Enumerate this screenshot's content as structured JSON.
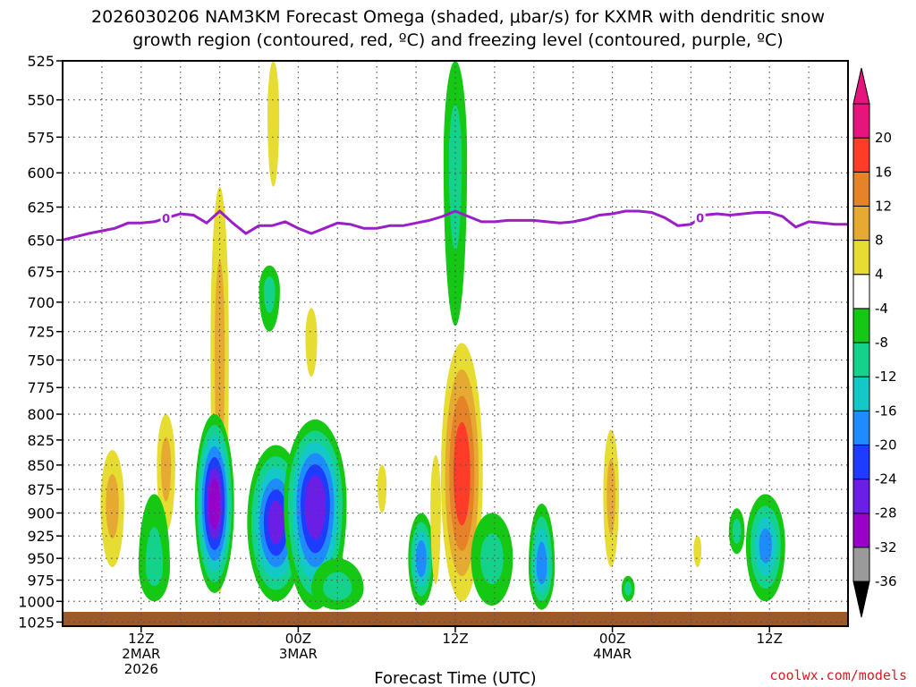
{
  "title": {
    "line1": "2026030206 NAM3KM Forecast Omega (shaded, μbar/s) for KXMR with dendritic snow",
    "line2": "growth region (contoured, red, ºC) and freezing level (contoured, purple, ºC)"
  },
  "credit": "coolwx.com/models",
  "chart_data": {
    "type": "heatmap",
    "title": "2026030206 NAM3KM Forecast Omega (shaded, μbar/s) for KXMR with dendritic snow growth region (contoured, red, ºC) and freezing level (contoured, purple, ºC)",
    "xlabel": "Forecast Time (UTC)",
    "ylabel": "",
    "x_unit": "forecast hour from 2026-03-02 06Z",
    "xlim": [
      0,
      60
    ],
    "ylim": [
      1030,
      525
    ],
    "y_scale": "log-pressure",
    "grid": true,
    "x_ticks": [
      {
        "hour": 6,
        "lines": [
          "12Z",
          "2MAR",
          "2026"
        ]
      },
      {
        "hour": 18,
        "lines": [
          "00Z",
          "3MAR"
        ]
      },
      {
        "hour": 30,
        "lines": [
          "12Z"
        ]
      },
      {
        "hour": 42,
        "lines": [
          "00Z",
          "4MAR"
        ]
      },
      {
        "hour": 54,
        "lines": [
          "12Z"
        ]
      }
    ],
    "y_ticks": [
      525,
      550,
      575,
      600,
      625,
      650,
      675,
      700,
      725,
      750,
      775,
      800,
      825,
      850,
      875,
      900,
      925,
      950,
      975,
      1000,
      1025
    ],
    "colorbar": {
      "levels": [
        -36,
        -32,
        -28,
        -24,
        -20,
        -16,
        -12,
        -8,
        -4,
        4,
        8,
        12,
        16,
        20
      ],
      "colors": [
        "#9a9a9a",
        "#9900c8",
        "#6a1ee6",
        "#1e3cff",
        "#1e8cff",
        "#14c8c8",
        "#14d28c",
        "#14c814",
        "#ffffff",
        "#e6dc32",
        "#e6aa32",
        "#e68228",
        "#ff3c28",
        "#e6147d"
      ],
      "under_color": "#000000",
      "over_color": "#e6147d"
    },
    "freezing_level": {
      "label": "0",
      "color": "#9b1fc9",
      "x": [
        0,
        2,
        4,
        5,
        6,
        7,
        8,
        9,
        10,
        11,
        12,
        13,
        14,
        15,
        16,
        17,
        18,
        19,
        20,
        21,
        22,
        23,
        24,
        25,
        26,
        27,
        28,
        29,
        30,
        31,
        32,
        33,
        34,
        35,
        36,
        37,
        38,
        39,
        40,
        41,
        42,
        43,
        44,
        45,
        46,
        47,
        48,
        49,
        50,
        51,
        52,
        53,
        54,
        55,
        56,
        57,
        58,
        59,
        60
      ],
      "p": [
        650,
        645,
        641,
        637,
        637,
        636,
        633,
        630,
        631,
        637,
        628,
        637,
        645,
        639,
        639,
        636,
        641,
        645,
        641,
        637,
        638,
        641,
        641,
        639,
        639,
        637,
        635,
        632,
        628,
        632,
        636,
        636,
        635,
        635,
        635,
        636,
        637,
        636,
        634,
        631,
        630,
        628,
        628,
        629,
        633,
        639,
        638,
        631,
        630,
        631,
        630,
        629,
        629,
        632,
        640,
        636,
        637,
        638,
        638
      ]
    },
    "cells": [
      {
        "x": 3.8,
        "p": 890,
        "wx": 0.9,
        "py": [
          835,
          960
        ],
        "peak": 8
      },
      {
        "x": 7.9,
        "p": 850,
        "wx": 0.7,
        "py": [
          800,
          920
        ],
        "peak": 8
      },
      {
        "x": 7.0,
        "p": 960,
        "wx": 1.2,
        "py": [
          880,
          1000
        ],
        "peak": -8
      },
      {
        "x": 12.0,
        "p": 740,
        "wx": 0.7,
        "py": [
          610,
          990
        ],
        "peak": 8
      },
      {
        "x": 11.6,
        "p": 890,
        "wx": 1.5,
        "py": [
          800,
          990
        ],
        "peak": -30
      },
      {
        "x": 16.1,
        "p": 560,
        "wx": 0.45,
        "py": [
          525,
          610
        ],
        "peak": 5
      },
      {
        "x": 15.8,
        "p": 690,
        "wx": 0.8,
        "py": [
          670,
          725
        ],
        "peak": -8
      },
      {
        "x": 16.3,
        "p": 910,
        "wx": 2.2,
        "py": [
          830,
          1000
        ],
        "peak": -25
      },
      {
        "x": 19.3,
        "p": 890,
        "wx": 2.4,
        "py": [
          805,
          1010
        ],
        "peak": -27
      },
      {
        "x": 19.0,
        "p": 730,
        "wx": 0.45,
        "py": [
          705,
          765
        ],
        "peak": 5
      },
      {
        "x": 21.0,
        "p": 985,
        "wx": 2.0,
        "py": [
          950,
          1010
        ],
        "peak": -8
      },
      {
        "x": 24.4,
        "p": 870,
        "wx": 0.35,
        "py": [
          850,
          900
        ],
        "peak": 5
      },
      {
        "x": 27.4,
        "p": 950,
        "wx": 1.0,
        "py": [
          900,
          1005
        ],
        "peak": -18
      },
      {
        "x": 28.5,
        "p": 890,
        "wx": 0.4,
        "py": [
          840,
          980
        ],
        "peak": 5
      },
      {
        "x": 30.0,
        "p": 590,
        "wx": 0.9,
        "py": [
          525,
          720
        ],
        "peak": -8
      },
      {
        "x": 30.5,
        "p": 860,
        "wx": 1.6,
        "py": [
          735,
          1000
        ],
        "peak": 18
      },
      {
        "x": 32.8,
        "p": 950,
        "wx": 1.6,
        "py": [
          900,
          1005
        ],
        "peak": -8
      },
      {
        "x": 36.6,
        "p": 960,
        "wx": 1.0,
        "py": [
          890,
          1010
        ],
        "peak": -18
      },
      {
        "x": 41.9,
        "p": 880,
        "wx": 0.6,
        "py": [
          815,
          960
        ],
        "peak": 8
      },
      {
        "x": 43.2,
        "p": 985,
        "wx": 0.5,
        "py": [
          970,
          1000
        ],
        "peak": -8
      },
      {
        "x": 48.5,
        "p": 940,
        "wx": 0.3,
        "py": [
          925,
          960
        ],
        "peak": 5
      },
      {
        "x": 51.5,
        "p": 920,
        "wx": 0.6,
        "py": [
          895,
          945
        ],
        "peak": -8
      },
      {
        "x": 53.7,
        "p": 935,
        "wx": 1.5,
        "py": [
          880,
          1000
        ],
        "peak": -16
      }
    ]
  }
}
